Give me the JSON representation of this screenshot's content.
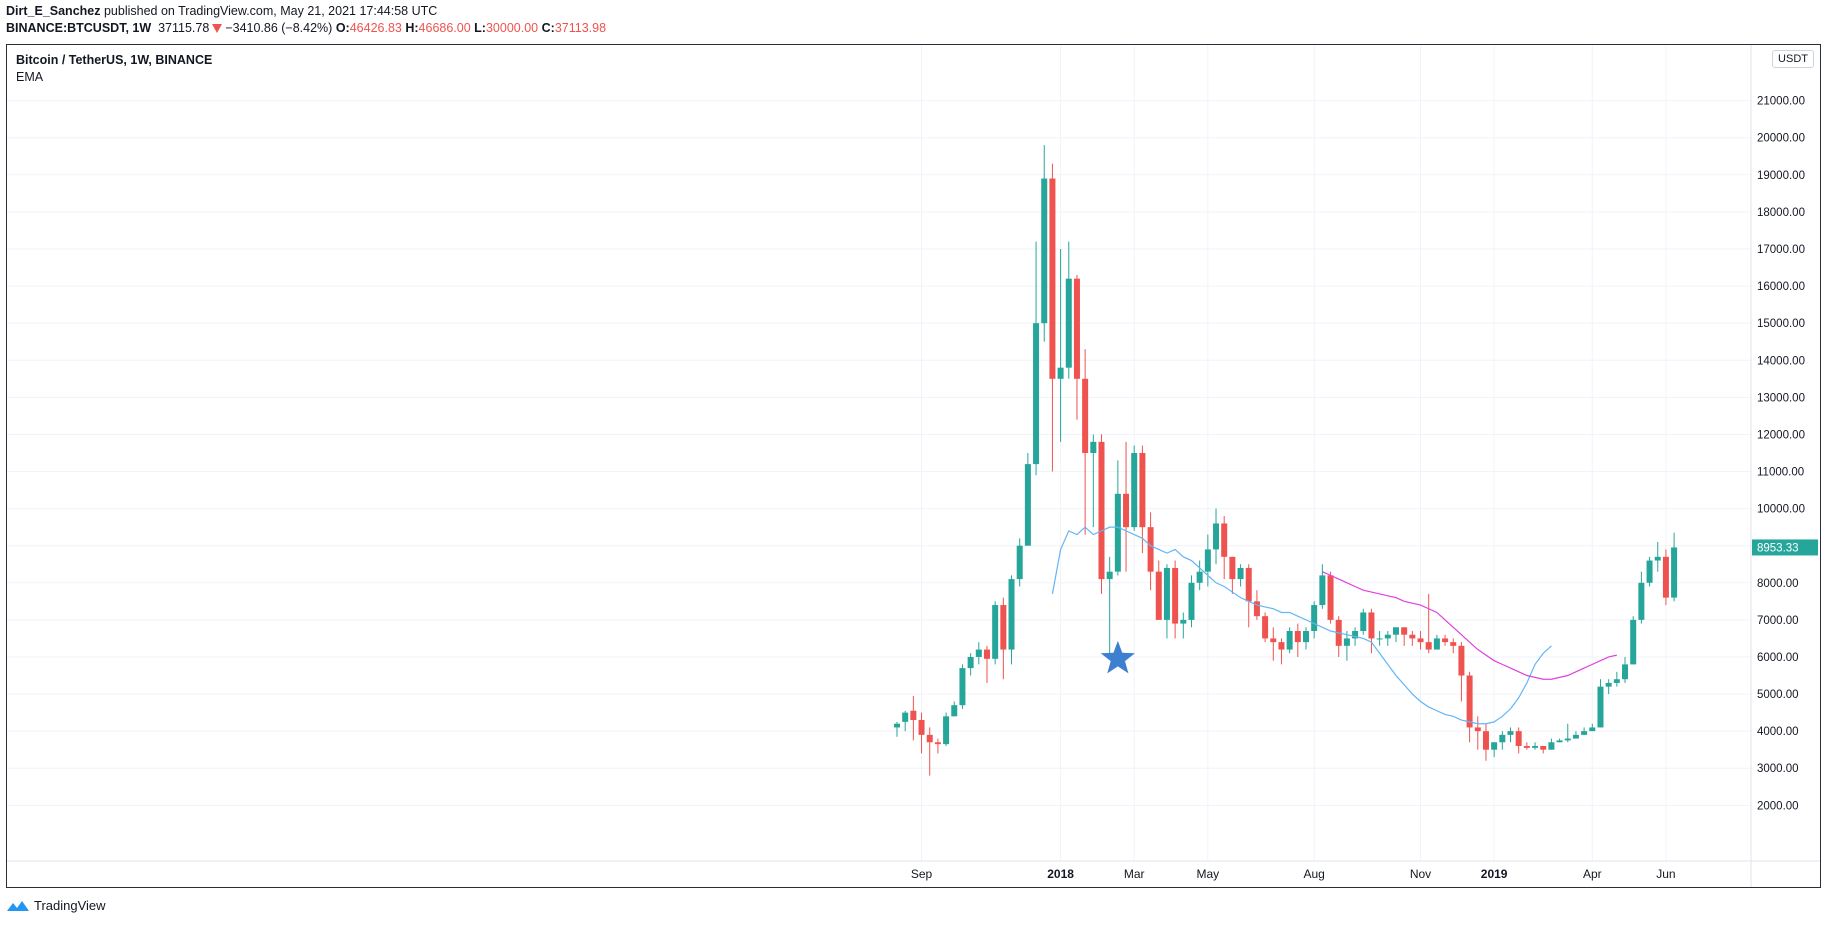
{
  "header": {
    "author": "Dirt_E_Sanchez",
    "published_text": "published on TradingView.com, May 21, 2021 17:44:58 UTC",
    "symbol": "BINANCE:BTCUSDT, 1W",
    "last": "37115.78",
    "change": "−3410.86 (−8.42%)",
    "o_label": "O:",
    "o_value": "46426.83",
    "h_label": "H:",
    "h_value": "46686.00",
    "l_label": "L:",
    "l_value": "30000.00",
    "c_label": "C:",
    "c_value": "37113.98"
  },
  "pane": {
    "title": "Bitcoin / TetherUS, 1W, BINANCE",
    "indicator": "EMA",
    "currency": "USDT",
    "last_price_label": "8953.33"
  },
  "footer": {
    "brand": "TradingView"
  },
  "colors": {
    "up": "#26a69a",
    "down": "#ef5350",
    "ema_fast": "#64b5f6",
    "ema_slow": "#e040e0",
    "marker": "#3d7fd0",
    "grid": "#f0f3fa"
  },
  "chart_data": {
    "type": "candlestick",
    "ylim": [
      1200,
      22500
    ],
    "y_ticks": [
      "2000.00",
      "3000.00",
      "4000.00",
      "5000.00",
      "6000.00",
      "7000.00",
      "8000.00",
      "9000.00",
      "10000.00",
      "11000.00",
      "12000.00",
      "13000.00",
      "14000.00",
      "15000.00",
      "16000.00",
      "17000.00",
      "18000.00",
      "19000.00",
      "20000.00",
      "21000.00"
    ],
    "x_ticks": [
      {
        "label": "Sep",
        "index": 3
      },
      {
        "label": "2018",
        "index": 20
      },
      {
        "label": "Mar",
        "index": 29
      },
      {
        "label": "May",
        "index": 38
      },
      {
        "label": "Aug",
        "index": 51
      },
      {
        "label": "Nov",
        "index": 64
      },
      {
        "label": "2019",
        "index": 73
      },
      {
        "label": "Apr",
        "index": 85
      },
      {
        "label": "Jun",
        "index": 94
      }
    ],
    "candles": [
      [
        4100,
        4200,
        3850,
        4250
      ],
      [
        4250,
        4500,
        4000,
        4550
      ],
      [
        4550,
        4300,
        3750,
        4950
      ],
      [
        4300,
        3900,
        3400,
        4500
      ],
      [
        3900,
        3700,
        2800,
        4100
      ],
      [
        3700,
        3650,
        3400,
        3800
      ],
      [
        3650,
        4400,
        3600,
        4500
      ],
      [
        4400,
        4700,
        4400,
        4800
      ],
      [
        4700,
        5700,
        4600,
        5800
      ],
      [
        5700,
        6000,
        5500,
        6100
      ],
      [
        6000,
        6200,
        5800,
        6400
      ],
      [
        6200,
        5950,
        5300,
        6300
      ],
      [
        5950,
        7400,
        5800,
        7500
      ],
      [
        7400,
        6200,
        5400,
        7600
      ],
      [
        6200,
        8100,
        5800,
        8200
      ],
      [
        8100,
        9000,
        7900,
        9200
      ],
      [
        9000,
        11200,
        9000,
        11500
      ],
      [
        11200,
        15000,
        10900,
        17200
      ],
      [
        15000,
        18900,
        14500,
        19800
      ],
      [
        18900,
        13500,
        11000,
        19300
      ],
      [
        13500,
        13800,
        11800,
        17000
      ],
      [
        13800,
        16200,
        13500,
        17200
      ],
      [
        16200,
        13500,
        12400,
        16300
      ],
      [
        13500,
        11500,
        9300,
        14300
      ],
      [
        11500,
        11800,
        9500,
        12000
      ],
      [
        11800,
        8100,
        7700,
        12000
      ],
      [
        8100,
        8300,
        6000,
        8700
      ],
      [
        8300,
        10400,
        8200,
        11300
      ],
      [
        10400,
        9500,
        8300,
        11800
      ],
      [
        9500,
        11500,
        9400,
        11700
      ],
      [
        11500,
        9500,
        8800,
        11700
      ],
      [
        9500,
        8300,
        7800,
        9900
      ],
      [
        8300,
        7000,
        7000,
        8600
      ],
      [
        7000,
        8400,
        6500,
        8500
      ],
      [
        8400,
        6900,
        6500,
        8600
      ],
      [
        6900,
        7000,
        6500,
        7200
      ],
      [
        7000,
        8000,
        6800,
        8200
      ],
      [
        8000,
        8300,
        7800,
        8600
      ],
      [
        8300,
        8900,
        7900,
        9300
      ],
      [
        8900,
        9600,
        8500,
        10000
      ],
      [
        9600,
        8700,
        8100,
        9800
      ],
      [
        8700,
        8100,
        7700,
        8700
      ],
      [
        8100,
        8400,
        7900,
        8500
      ],
      [
        8400,
        7500,
        6800,
        8500
      ],
      [
        7500,
        7100,
        7000,
        7800
      ],
      [
        7100,
        6500,
        6400,
        7200
      ],
      [
        6500,
        6400,
        5900,
        6800
      ],
      [
        6400,
        6200,
        5800,
        6500
      ],
      [
        6200,
        6700,
        6100,
        6800
      ],
      [
        6700,
        6400,
        6000,
        6900
      ],
      [
        6400,
        6700,
        6200,
        6800
      ],
      [
        6700,
        7400,
        6500,
        7500
      ],
      [
        7400,
        8200,
        7300,
        8500
      ],
      [
        8200,
        7000,
        6900,
        8300
      ],
      [
        7000,
        6300,
        6000,
        7100
      ],
      [
        6300,
        6500,
        5900,
        6700
      ],
      [
        6500,
        6700,
        6300,
        6800
      ],
      [
        6700,
        7200,
        6600,
        7300
      ],
      [
        7200,
        6500,
        6100,
        7300
      ],
      [
        6500,
        6500,
        6300,
        6700
      ],
      [
        6500,
        6600,
        6300,
        6700
      ],
      [
        6600,
        6800,
        6400,
        6800
      ],
      [
        6800,
        6600,
        6300,
        6800
      ],
      [
        6600,
        6500,
        6300,
        6700
      ],
      [
        6500,
        6400,
        6200,
        6700
      ],
      [
        6400,
        6200,
        6100,
        7700
      ],
      [
        6200,
        6500,
        6300,
        6600
      ],
      [
        6500,
        6400,
        6300,
        6600
      ],
      [
        6400,
        6300,
        6100,
        6500
      ],
      [
        6300,
        5500,
        4800,
        6400
      ],
      [
        5500,
        4100,
        3700,
        5600
      ],
      [
        4100,
        4000,
        3500,
        4400
      ],
      [
        4000,
        3500,
        3200,
        4200
      ],
      [
        3500,
        3700,
        3300,
        3700
      ],
      [
        3700,
        3900,
        3500,
        4000
      ],
      [
        3900,
        4000,
        3700,
        4100
      ],
      [
        4000,
        3600,
        3400,
        4100
      ],
      [
        3600,
        3550,
        3500,
        3700
      ],
      [
        3550,
        3600,
        3500,
        3700
      ],
      [
        3600,
        3500,
        3400,
        3600
      ],
      [
        3500,
        3700,
        3500,
        3800
      ],
      [
        3700,
        3750,
        3700,
        3800
      ],
      [
        3750,
        3800,
        3700,
        4200
      ],
      [
        3800,
        3900,
        3800,
        4000
      ],
      [
        3900,
        4000,
        3900,
        4100
      ],
      [
        4000,
        4100,
        4000,
        4200
      ],
      [
        4100,
        5200,
        4100,
        5400
      ],
      [
        5200,
        5300,
        5000,
        5400
      ],
      [
        5300,
        5400,
        5200,
        5600
      ],
      [
        5400,
        5800,
        5300,
        6000
      ],
      [
        5800,
        7000,
        5800,
        7100
      ],
      [
        7000,
        8000,
        6900,
        8300
      ],
      [
        8000,
        8600,
        7900,
        8700
      ],
      [
        8600,
        8700,
        8300,
        9100
      ],
      [
        8700,
        7600,
        7400,
        8900
      ],
      [
        7600,
        8953,
        7500,
        9350
      ]
    ],
    "ema_fast": {
      "start_index": 19,
      "values": [
        7700,
        8900,
        9400,
        9300,
        9500,
        9300,
        9400,
        9500,
        9500,
        9400,
        9300,
        9200,
        9000,
        8900,
        8800,
        8900,
        8700,
        8600,
        8400,
        8200,
        8000,
        7900,
        7750,
        7600,
        7500,
        7400,
        7350,
        7300,
        7200,
        7200,
        7100,
        7000,
        6900,
        6800,
        6700,
        6650,
        6600,
        6550,
        6500,
        6400,
        6100,
        5800,
        5500,
        5250,
        5000,
        4800,
        4650,
        4550,
        4450,
        4400,
        4300,
        4250,
        4200,
        4200,
        4250,
        4400,
        4600,
        4900,
        5300,
        5800,
        6100,
        6300
      ]
    },
    "ema_slow": {
      "start_index": 52,
      "values": [
        8300,
        8200,
        8100,
        8000,
        7900,
        7800,
        7750,
        7700,
        7650,
        7600,
        7500,
        7450,
        7400,
        7300,
        7200,
        7000,
        6800,
        6600,
        6400,
        6200,
        6050,
        5900,
        5800,
        5700,
        5600,
        5500,
        5450,
        5400,
        5400,
        5450,
        5500,
        5600,
        5700,
        5800,
        5900,
        6000,
        6050
      ]
    },
    "marker": {
      "type": "star",
      "index": 27,
      "value": 5950
    }
  }
}
